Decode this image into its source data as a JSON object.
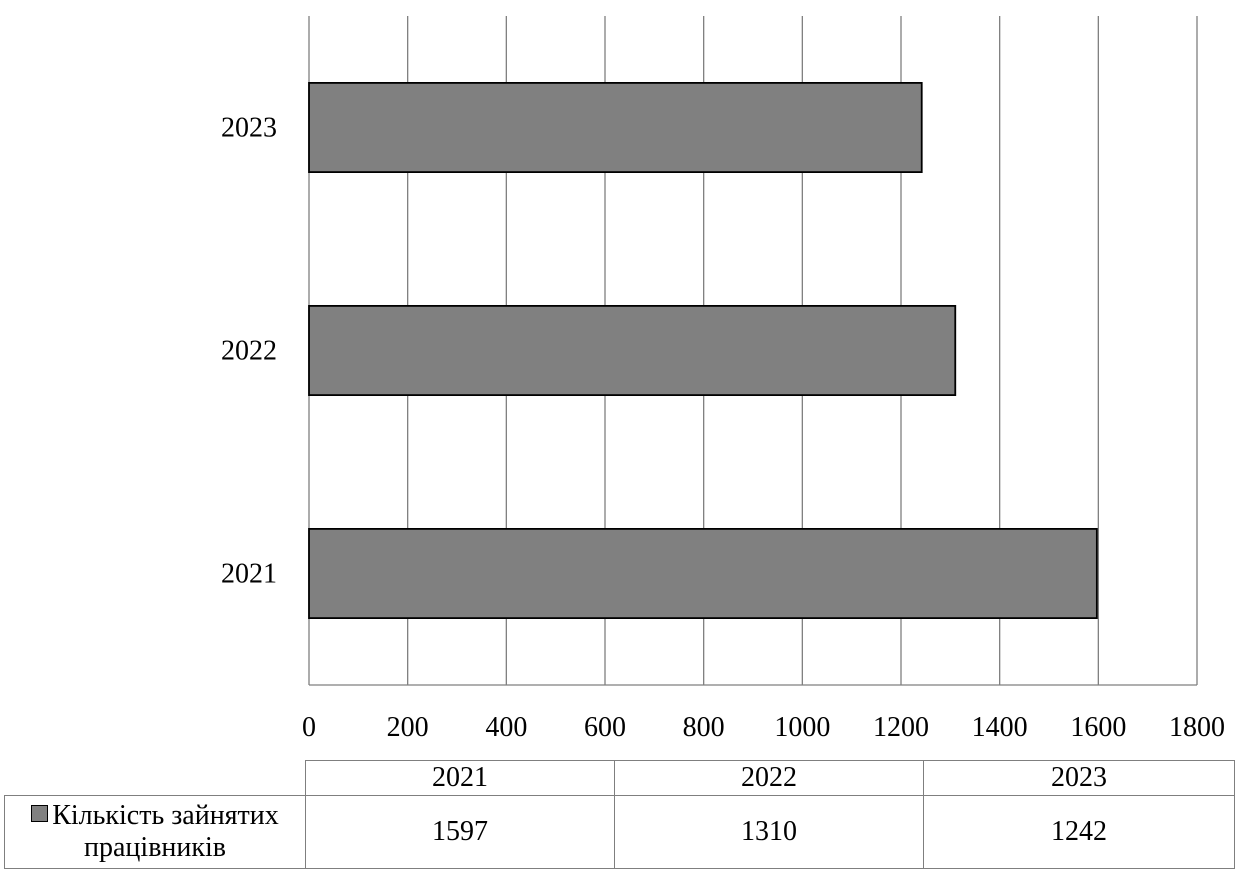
{
  "chart_data": {
    "type": "bar",
    "orientation": "horizontal",
    "categories": [
      "2021",
      "2022",
      "2023"
    ],
    "series": [
      {
        "name": "Кількість зайнятих працівників",
        "values": [
          1597,
          1310,
          1242
        ]
      }
    ],
    "xlim": [
      0,
      1800
    ],
    "x_ticks": [
      "0",
      "200",
      "400",
      "600",
      "800",
      "1000",
      "1200",
      "1400",
      "1600",
      "1800"
    ],
    "grid": true,
    "legend": "data-table-below",
    "bar_color": "#808080",
    "bar_edge_color": "#000000",
    "grid_color": "#7f7f7f"
  },
  "data_table": {
    "headers": [
      "2021",
      "2022",
      "2023"
    ],
    "row_label_line1": "Кількість зайнятих",
    "row_label_line2": "працівників",
    "values": [
      "1597",
      "1310",
      "1242"
    ]
  }
}
